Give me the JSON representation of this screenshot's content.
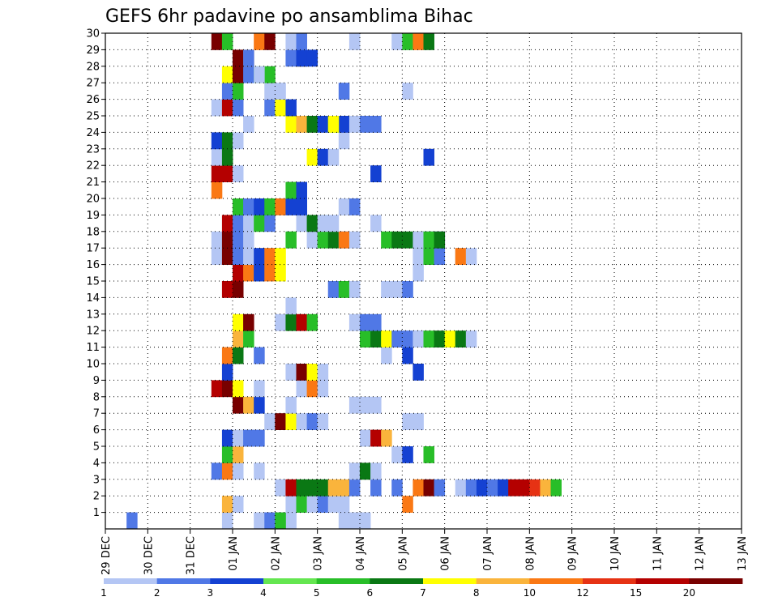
{
  "chart_data": {
    "type": "heatmap",
    "title": "GEFS 6hr padavine po ansamblima Bihac",
    "xlabel": "",
    "ylabel": "",
    "x_tick_labels": [
      "29 DEC",
      "30 DEC",
      "31 DEC",
      "01 JAN",
      "02 JAN",
      "03 JAN",
      "04 JAN",
      "05 JAN",
      "06 JAN",
      "07 JAN",
      "08 JAN",
      "09 JAN",
      "10 JAN",
      "11 JAN",
      "12 JAN",
      "13 JAN"
    ],
    "x_range": [
      "29 DEC 00Z",
      "13 JAN 00Z"
    ],
    "time_step_hours": 6,
    "y_tick_labels": [
      "1",
      "2",
      "3",
      "4",
      "5",
      "6",
      "7",
      "8",
      "9",
      "10",
      "11",
      "12",
      "13",
      "14",
      "15",
      "16",
      "17",
      "18",
      "19",
      "20",
      "21",
      "22",
      "23",
      "24",
      "25",
      "26",
      "27",
      "28",
      "29",
      "30"
    ],
    "ylim": [
      0,
      30
    ],
    "grid": "dotted",
    "colorbar": {
      "position": "bottom",
      "tick_labels": [
        "1",
        "2",
        "3",
        "4",
        "5",
        "6",
        "7",
        "8",
        "10",
        "12",
        "15",
        "20"
      ],
      "colors": [
        "#b4c6f4",
        "#5078e6",
        "#1441d2",
        "#64e650",
        "#28be28",
        "#0a7814",
        "#ffff00",
        "#fab43c",
        "#fa7814",
        "#e63214",
        "#b40000",
        "#780000"
      ]
    },
    "cell_encoding": "start_index = 6-hour step counted from 29 DEC 00Z; class = colour index 0-11 (0 = 1-2, 11 = >20)",
    "members": [
      {
        "member": 1,
        "cells": [
          [
            0,
            11
          ],
          [
            1,
            2
          ],
          [
            0,
            14,
            4
          ],
          [
            0,
            15
          ],
          [
            1,
            15
          ],
          [
            4,
            16
          ],
          [
            0,
            22,
            3
          ]
        ]
      },
      {
        "member": 2,
        "cells": [
          [
            7,
            11
          ],
          [
            0,
            12
          ],
          [
            0,
            17
          ],
          [
            4,
            18
          ],
          [
            0,
            19
          ],
          [
            1,
            20
          ],
          [
            0,
            21,
            2
          ],
          [
            8,
            28
          ]
        ]
      },
      {
        "member": 3,
        "cells": [
          [
            0,
            16
          ],
          [
            10,
            17
          ],
          [
            5,
            18,
            3
          ],
          [
            7,
            21,
            2
          ],
          [
            1,
            23
          ],
          [
            1,
            25
          ],
          [
            1,
            27
          ],
          [
            8,
            29
          ],
          [
            11,
            30
          ],
          [
            1,
            31
          ],
          [
            0,
            33
          ],
          [
            1,
            34
          ],
          [
            2,
            35
          ],
          [
            1,
            36
          ],
          [
            2,
            37
          ],
          [
            10,
            38,
            2
          ],
          [
            9,
            40
          ],
          [
            7,
            41
          ],
          [
            4,
            42
          ]
        ]
      },
      {
        "member": 4,
        "cells": [
          [
            1,
            10
          ],
          [
            8,
            11
          ],
          [
            0,
            12
          ],
          [
            0,
            14
          ],
          [
            0,
            23
          ],
          [
            5,
            24
          ],
          [
            0,
            25
          ]
        ]
      },
      {
        "member": 5,
        "cells": [
          [
            4,
            11
          ],
          [
            7,
            12
          ],
          [
            0,
            27
          ],
          [
            2,
            28
          ],
          [
            4,
            30
          ]
        ]
      },
      {
        "member": 6,
        "cells": [
          [
            2,
            11
          ],
          [
            0,
            12
          ],
          [
            1,
            13,
            2
          ],
          [
            0,
            24
          ],
          [
            10,
            25
          ],
          [
            7,
            26
          ]
        ]
      },
      {
        "member": 7,
        "cells": [
          [
            0,
            15
          ],
          [
            11,
            16
          ],
          [
            6,
            17
          ],
          [
            0,
            18
          ],
          [
            1,
            19
          ],
          [
            0,
            20
          ],
          [
            0,
            28,
            2
          ]
        ]
      },
      {
        "member": 8,
        "cells": [
          [
            11,
            12
          ],
          [
            7,
            13
          ],
          [
            2,
            14
          ],
          [
            0,
            17
          ],
          [
            0,
            23,
            3
          ]
        ]
      },
      {
        "member": 9,
        "cells": [
          [
            10,
            10
          ],
          [
            11,
            11
          ],
          [
            6,
            12
          ],
          [
            0,
            14
          ],
          [
            0,
            18
          ],
          [
            8,
            19
          ],
          [
            0,
            20
          ]
        ]
      },
      {
        "member": 10,
        "cells": [
          [
            2,
            11
          ],
          [
            0,
            17
          ],
          [
            11,
            18
          ],
          [
            6,
            19
          ],
          [
            0,
            20
          ],
          [
            2,
            29
          ]
        ]
      },
      {
        "member": 11,
        "cells": [
          [
            8,
            11
          ],
          [
            5,
            12
          ],
          [
            1,
            14
          ],
          [
            0,
            26
          ],
          [
            2,
            28
          ]
        ]
      },
      {
        "member": 12,
        "cells": [
          [
            7,
            12
          ],
          [
            4,
            13
          ],
          [
            4,
            24
          ],
          [
            5,
            25
          ],
          [
            6,
            26
          ],
          [
            1,
            27,
            3
          ],
          [
            0,
            29
          ],
          [
            4,
            30
          ],
          [
            5,
            31
          ],
          [
            6,
            32
          ],
          [
            5,
            33
          ],
          [
            0,
            34
          ]
        ]
      },
      {
        "member": 13,
        "cells": [
          [
            6,
            12
          ],
          [
            11,
            13
          ],
          [
            0,
            16
          ],
          [
            5,
            17
          ],
          [
            10,
            18
          ],
          [
            4,
            19
          ],
          [
            0,
            23
          ],
          [
            1,
            24,
            2
          ]
        ]
      },
      {
        "member": 14,
        "cells": [
          [
            0,
            17
          ]
        ]
      },
      {
        "member": 15,
        "cells": [
          [
            10,
            11
          ],
          [
            11,
            12
          ],
          [
            1,
            21
          ],
          [
            4,
            22
          ],
          [
            0,
            23
          ],
          [
            0,
            26
          ],
          [
            0,
            27
          ],
          [
            1,
            28
          ]
        ]
      },
      {
        "member": 16,
        "cells": [
          [
            10,
            12
          ],
          [
            8,
            13
          ],
          [
            1,
            14
          ],
          [
            2,
            14
          ],
          [
            8,
            15
          ],
          [
            6,
            16
          ],
          [
            0,
            29
          ]
        ]
      },
      {
        "member": 17,
        "cells": [
          [
            0,
            10
          ],
          [
            11,
            11
          ],
          [
            1,
            12
          ],
          [
            0,
            13
          ],
          [
            2,
            14
          ],
          [
            8,
            15
          ],
          [
            6,
            16
          ],
          [
            0,
            29,
            2
          ],
          [
            0,
            30
          ],
          [
            4,
            30
          ],
          [
            1,
            31
          ],
          [
            0,
            33
          ],
          [
            8,
            33
          ],
          [
            0,
            34
          ]
        ]
      },
      {
        "member": 18,
        "cells": [
          [
            0,
            10
          ],
          [
            11,
            11
          ],
          [
            1,
            12
          ],
          [
            0,
            13
          ],
          [
            4,
            17
          ],
          [
            0,
            19
          ],
          [
            4,
            20
          ],
          [
            5,
            21
          ],
          [
            1,
            22
          ],
          [
            8,
            22
          ],
          [
            0,
            23
          ],
          [
            4,
            26
          ],
          [
            5,
            27,
            3
          ],
          [
            0,
            29
          ],
          [
            1,
            30,
            2
          ],
          [
            4,
            30
          ],
          [
            5,
            31
          ]
        ]
      },
      {
        "member": 19,
        "cells": [
          [
            10,
            11
          ],
          [
            1,
            12
          ],
          [
            0,
            13
          ],
          [
            4,
            14
          ],
          [
            1,
            15
          ],
          [
            0,
            18
          ],
          [
            5,
            19,
            2
          ],
          [
            0,
            20,
            2
          ],
          [
            0,
            25
          ]
        ]
      },
      {
        "member": 20,
        "cells": [
          [
            4,
            12
          ],
          [
            1,
            13
          ],
          [
            2,
            14
          ],
          [
            4,
            15
          ],
          [
            8,
            16
          ],
          [
            2,
            17,
            2
          ],
          [
            0,
            22
          ],
          [
            1,
            23
          ]
        ]
      },
      {
        "member": 21,
        "cells": [
          [
            8,
            10
          ],
          [
            4,
            17
          ],
          [
            2,
            18
          ]
        ]
      },
      {
        "member": 22,
        "cells": [
          [
            10,
            10,
            2
          ],
          [
            0,
            12
          ],
          [
            2,
            25
          ]
        ]
      },
      {
        "member": 23,
        "cells": [
          [
            0,
            10
          ],
          [
            5,
            11
          ],
          [
            6,
            19
          ],
          [
            2,
            20
          ],
          [
            0,
            21
          ],
          [
            2,
            30
          ]
        ]
      },
      {
        "member": 24,
        "cells": [
          [
            2,
            10
          ],
          [
            5,
            11
          ],
          [
            0,
            12
          ],
          [
            0,
            22
          ]
        ]
      },
      {
        "member": 25,
        "cells": [
          [
            0,
            13
          ],
          [
            6,
            17
          ],
          [
            7,
            18
          ],
          [
            5,
            19
          ],
          [
            2,
            20
          ],
          [
            4,
            21
          ],
          [
            0,
            22
          ],
          [
            2,
            22
          ],
          [
            6,
            21
          ],
          [
            0,
            23
          ],
          [
            1,
            24,
            2
          ]
        ]
      },
      {
        "member": 26,
        "cells": [
          [
            0,
            10
          ],
          [
            10,
            11
          ],
          [
            1,
            12
          ],
          [
            1,
            15
          ],
          [
            6,
            16
          ],
          [
            2,
            17
          ]
        ]
      },
      {
        "member": 27,
        "cells": [
          [
            1,
            11
          ],
          [
            4,
            12
          ],
          [
            0,
            15,
            2
          ],
          [
            1,
            22
          ],
          [
            0,
            28
          ]
        ]
      },
      {
        "member": 28,
        "cells": [
          [
            6,
            11
          ],
          [
            11,
            12
          ],
          [
            1,
            13
          ],
          [
            4,
            14,
            2
          ],
          [
            0,
            14
          ]
        ]
      },
      {
        "member": 29,
        "cells": [
          [
            11,
            12
          ],
          [
            8,
            13
          ],
          [
            1,
            13
          ],
          [
            1,
            17
          ],
          [
            5,
            18
          ],
          [
            8,
            18
          ],
          [
            2,
            18
          ],
          [
            2,
            19
          ]
        ]
      },
      {
        "member": 30,
        "cells": [
          [
            11,
            10
          ],
          [
            4,
            11
          ],
          [
            8,
            14
          ],
          [
            11,
            15
          ],
          [
            0,
            17
          ],
          [
            1,
            18
          ],
          [
            0,
            23
          ],
          [
            0,
            27,
            2
          ],
          [
            4,
            28
          ],
          [
            8,
            29
          ],
          [
            5,
            30
          ]
        ]
      }
    ]
  }
}
